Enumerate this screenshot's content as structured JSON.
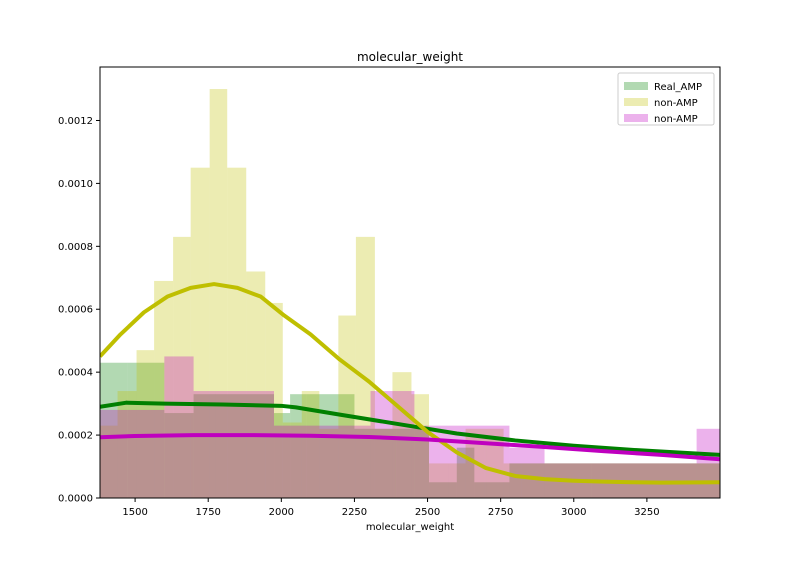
{
  "chart_data": {
    "type": "bar",
    "title": "molecular_weight",
    "xlabel": "molecular_weight",
    "ylabel": "",
    "xlim": [
      1380,
      3500
    ],
    "ylim": [
      0,
      0.00137
    ],
    "xticks": [
      1500,
      1750,
      2000,
      2250,
      2500,
      2750,
      3000,
      3250
    ],
    "xtick_labels": [
      "1500",
      "1750",
      "2000",
      "2250",
      "2500",
      "2750",
      "3000",
      "3250"
    ],
    "yticks": [
      0,
      0.0002,
      0.0004,
      0.0006,
      0.0008,
      0.001,
      0.0012
    ],
    "ytick_labels": [
      "0.0000",
      "0.0002",
      "0.0004",
      "0.0006",
      "0.0008",
      "0.0010",
      "0.0012"
    ],
    "legend_position": "top-right",
    "series": [
      {
        "name": "Real_AMP",
        "color": "#008000",
        "hist_alpha": 0.3,
        "bins": [
          {
            "x0": 1380,
            "x1": 1475,
            "y": 0.00043
          },
          {
            "x0": 1475,
            "x1": 1600,
            "y": 0.00043
          },
          {
            "x0": 1600,
            "x1": 1700,
            "y": 0.00027
          },
          {
            "x0": 1700,
            "x1": 1975,
            "y": 0.00033
          },
          {
            "x0": 1975,
            "x1": 2030,
            "y": 0.00027
          },
          {
            "x0": 2030,
            "x1": 2085,
            "y": 0.00033
          },
          {
            "x0": 2085,
            "x1": 2250,
            "y": 0.00033
          },
          {
            "x0": 2250,
            "x1": 2395,
            "y": 0.00022
          },
          {
            "x0": 2395,
            "x1": 2505,
            "y": 0.00022
          },
          {
            "x0": 2505,
            "x1": 2600,
            "y": 5e-05
          },
          {
            "x0": 2600,
            "x1": 2660,
            "y": 0.00016
          },
          {
            "x0": 2660,
            "x1": 2780,
            "y": 5e-05
          },
          {
            "x0": 2780,
            "x1": 3500,
            "y": 0.00011
          }
        ],
        "kde_x": [
          1380,
          1470,
          1600,
          1800,
          2000,
          2050,
          2200,
          2400,
          2600,
          2800,
          3000,
          3200,
          3500
        ],
        "kde_y": [
          0.00029,
          0.000303,
          0.0003,
          0.000297,
          0.000293,
          0.000288,
          0.000265,
          0.000235,
          0.000205,
          0.000183,
          0.000166,
          0.000153,
          0.000137
        ]
      },
      {
        "name": "non-AMP",
        "color": "#bfbf00",
        "hist_alpha": 0.3,
        "bins": [
          {
            "x0": 1380,
            "x1": 1440,
            "y": 0.00023
          },
          {
            "x0": 1440,
            "x1": 1505,
            "y": 0.00034
          },
          {
            "x0": 1505,
            "x1": 1565,
            "y": 0.00047
          },
          {
            "x0": 1565,
            "x1": 1630,
            "y": 0.00069
          },
          {
            "x0": 1630,
            "x1": 1690,
            "y": 0.00083
          },
          {
            "x0": 1690,
            "x1": 1755,
            "y": 0.00105
          },
          {
            "x0": 1755,
            "x1": 1815,
            "y": 0.0013
          },
          {
            "x0": 1815,
            "x1": 1880,
            "y": 0.00105
          },
          {
            "x0": 1880,
            "x1": 1945,
            "y": 0.00072
          },
          {
            "x0": 1945,
            "x1": 2005,
            "y": 0.00062
          },
          {
            "x0": 2005,
            "x1": 2070,
            "y": 0.00024
          },
          {
            "x0": 2070,
            "x1": 2130,
            "y": 0.00034
          },
          {
            "x0": 2130,
            "x1": 2195,
            "y": 0.00022
          },
          {
            "x0": 2195,
            "x1": 2255,
            "y": 0.00058
          },
          {
            "x0": 2255,
            "x1": 2320,
            "y": 0.00083
          },
          {
            "x0": 2320,
            "x1": 2380,
            "y": 0.00022
          },
          {
            "x0": 2380,
            "x1": 2445,
            "y": 0.0004
          },
          {
            "x0": 2445,
            "x1": 2505,
            "y": 0.00033
          },
          {
            "x0": 2505,
            "x1": 2570,
            "y": 0.00011
          },
          {
            "x0": 2570,
            "x1": 2630,
            "y": 0.00011
          },
          {
            "x0": 2630,
            "x1": 2695,
            "y": 0.00022
          },
          {
            "x0": 2695,
            "x1": 2760,
            "y": 0.00022
          },
          {
            "x0": 2760,
            "x1": 2820,
            "y": 0.00011
          },
          {
            "x0": 2820,
            "x1": 3500,
            "y": 0.00011
          }
        ],
        "kde_x": [
          1380,
          1450,
          1530,
          1610,
          1690,
          1770,
          1850,
          1930,
          2010,
          2100,
          2200,
          2300,
          2400,
          2500,
          2600,
          2700,
          2800,
          2900,
          3000,
          3100,
          3200,
          3300,
          3500
        ],
        "kde_y": [
          0.00045,
          0.00052,
          0.00059,
          0.00064,
          0.000668,
          0.00068,
          0.000668,
          0.00064,
          0.00058,
          0.00052,
          0.00044,
          0.00037,
          0.00029,
          0.00021,
          0.000145,
          9.5e-05,
          7e-05,
          6e-05,
          5.5e-05,
          5.2e-05,
          5e-05,
          4.9e-05,
          5e-05
        ]
      },
      {
        "name": "non-AMP",
        "color": "#bf00bf",
        "hist_alpha": 0.3,
        "bins": [
          {
            "x0": 1380,
            "x1": 1475,
            "y": 0.00028
          },
          {
            "x0": 1475,
            "x1": 1600,
            "y": 0.00028
          },
          {
            "x0": 1600,
            "x1": 1700,
            "y": 0.00045
          },
          {
            "x0": 1700,
            "x1": 1775,
            "y": 0.00034
          },
          {
            "x0": 1775,
            "x1": 1975,
            "y": 0.00034
          },
          {
            "x0": 1975,
            "x1": 2305,
            "y": 0.00023
          },
          {
            "x0": 2305,
            "x1": 2390,
            "y": 0.00034
          },
          {
            "x0": 2390,
            "x1": 2455,
            "y": 0.00034
          },
          {
            "x0": 2455,
            "x1": 2505,
            "y": 0.00023
          },
          {
            "x0": 2505,
            "x1": 2700,
            "y": 0.00023
          },
          {
            "x0": 2700,
            "x1": 2780,
            "y": 0.00023
          },
          {
            "x0": 2780,
            "x1": 2900,
            "y": 0.00016
          },
          {
            "x0": 2900,
            "x1": 3060,
            "y": 0.00011
          },
          {
            "x0": 3060,
            "x1": 3420,
            "y": 0.00011
          },
          {
            "x0": 3420,
            "x1": 3500,
            "y": 0.00022
          }
        ],
        "kde_x": [
          1380,
          1500,
          1700,
          1900,
          2100,
          2300,
          2500,
          2700,
          2900,
          3100,
          3300,
          3500
        ],
        "kde_y": [
          0.000193,
          0.000197,
          0.0002,
          0.0002,
          0.000198,
          0.000194,
          0.000186,
          0.000174,
          0.000162,
          0.000149,
          0.000137,
          0.000123
        ]
      }
    ]
  }
}
